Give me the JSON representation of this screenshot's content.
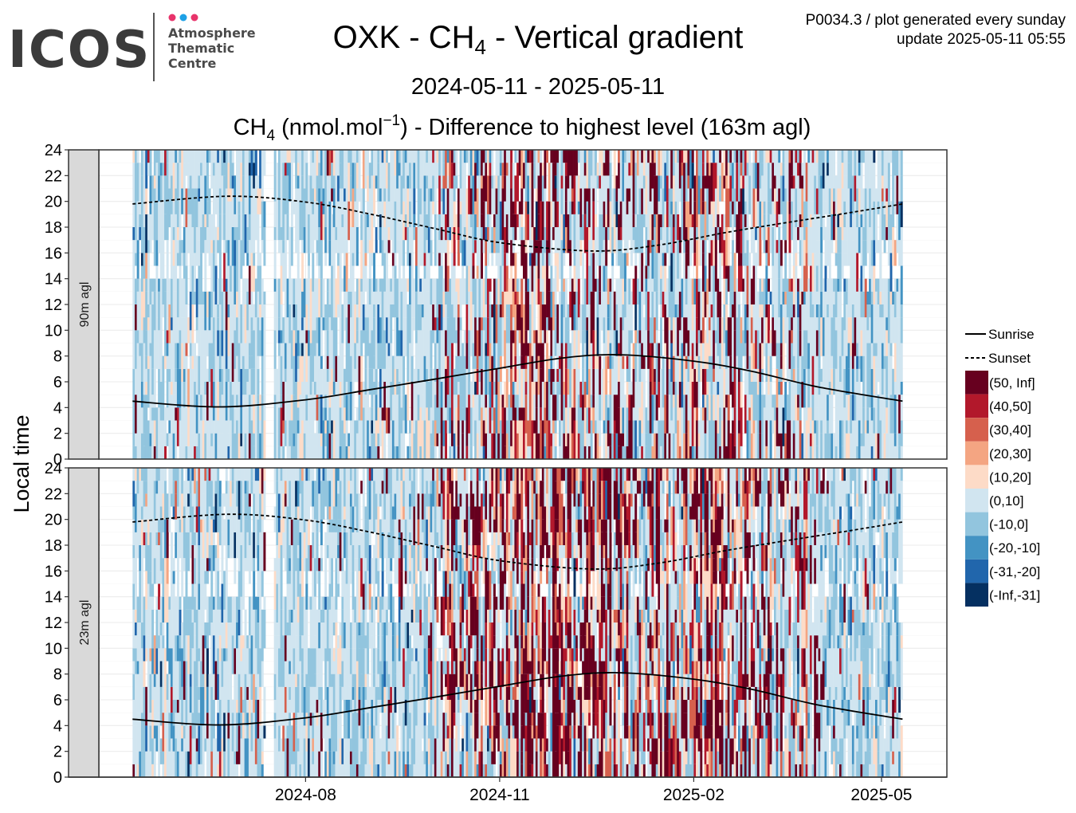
{
  "logo": {
    "word": "ICOS",
    "line1": "Atmosphere",
    "line2": "Thematic",
    "line3": "Centre",
    "dot_colors": [
      "#e8346b",
      "#1da1e6",
      "#e8346b"
    ]
  },
  "header": {
    "title_pre": "OXK - CH",
    "title_sub": "4",
    "title_post": " - Vertical gradient",
    "info_line1": "P0034.3 / plot generated every sunday",
    "info_line2": "update  2025-05-11 05:55",
    "date_range": "2024-05-11 - 2025-05-11",
    "subtitle_pre": "CH",
    "subtitle_sub": "4",
    "subtitle_mid": " (nmol.mol",
    "subtitle_sup": "−1",
    "subtitle_post": ") - Difference to highest level (163m agl)"
  },
  "chart_data": {
    "type": "heatmap",
    "x_start": "2024-05-11",
    "x_end": "2025-05-11",
    "ylabel": "Local time",
    "ylim": [
      0,
      24
    ],
    "y_ticks": [
      0,
      2,
      4,
      6,
      8,
      10,
      12,
      14,
      16,
      18,
      20,
      22,
      24
    ],
    "x_ticks": [
      {
        "date": "2024-08-01",
        "label": "2024-08"
      },
      {
        "date": "2024-11-01",
        "label": "2024-11"
      },
      {
        "date": "2025-02-01",
        "label": "2025-02"
      },
      {
        "date": "2025-05-01",
        "label": "2025-05"
      }
    ],
    "grid": true,
    "panels": [
      {
        "name": "90m agl"
      },
      {
        "name": "23m agl"
      }
    ],
    "legend_position": "right",
    "lines": [
      {
        "name": "Sunrise",
        "style": "solid",
        "points": [
          {
            "date": "2024-05-11",
            "hour": 4.5
          },
          {
            "date": "2024-06-21",
            "hour": 4.05
          },
          {
            "date": "2024-08-01",
            "hour": 4.6
          },
          {
            "date": "2024-09-01",
            "hour": 5.4
          },
          {
            "date": "2024-10-01",
            "hour": 6.2
          },
          {
            "date": "2024-11-01",
            "hour": 7.05
          },
          {
            "date": "2024-12-01",
            "hour": 7.85
          },
          {
            "date": "2024-12-28",
            "hour": 8.1
          },
          {
            "date": "2025-02-01",
            "hour": 7.6
          },
          {
            "date": "2025-03-01",
            "hour": 6.8
          },
          {
            "date": "2025-04-01",
            "hour": 5.6
          },
          {
            "date": "2025-05-11",
            "hour": 4.5
          }
        ]
      },
      {
        "name": "Sunset",
        "style": "dashed",
        "points": [
          {
            "date": "2024-05-11",
            "hour": 19.8
          },
          {
            "date": "2024-06-25",
            "hour": 20.4
          },
          {
            "date": "2024-08-01",
            "hour": 19.95
          },
          {
            "date": "2024-09-01",
            "hour": 19.0
          },
          {
            "date": "2024-10-01",
            "hour": 17.9
          },
          {
            "date": "2024-11-01",
            "hour": 16.8
          },
          {
            "date": "2024-12-15",
            "hour": 16.15
          },
          {
            "date": "2025-01-15",
            "hour": 16.6
          },
          {
            "date": "2025-02-15",
            "hour": 17.55
          },
          {
            "date": "2025-03-15",
            "hour": 18.3
          },
          {
            "date": "2025-04-15",
            "hour": 19.1
          },
          {
            "date": "2025-05-11",
            "hour": 19.8
          }
        ]
      }
    ],
    "color_classes": [
      {
        "label": "(50, Inf]",
        "color": "#67001f"
      },
      {
        "label": "(40,50]",
        "color": "#b2182b"
      },
      {
        "label": "(30,40]",
        "color": "#d6604d"
      },
      {
        "label": "(20,30]",
        "color": "#f4a582"
      },
      {
        "label": "(10,20]",
        "color": "#fddbc7"
      },
      {
        "label": "(0,10]",
        "color": "#d1e5f0"
      },
      {
        "label": "(-10,0]",
        "color": "#92c5de"
      },
      {
        "label": "(-20,-10]",
        "color": "#4393c3"
      },
      {
        "label": "(-31,-20]",
        "color": "#2166ac"
      },
      {
        "label": "(-Inf,-31]",
        "color": "#053061"
      }
    ]
  }
}
